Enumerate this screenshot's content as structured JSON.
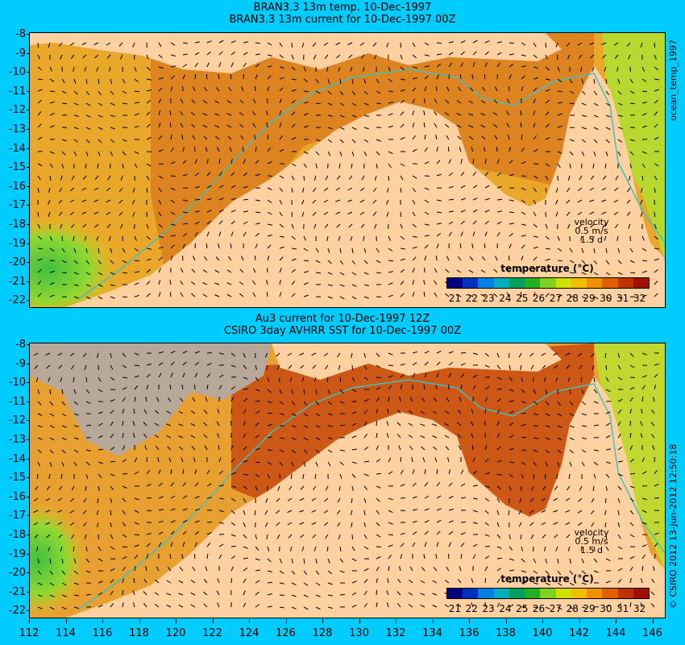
{
  "top": {
    "title_line1": "BRAN3.3 13m temp. 10-Dec-1997",
    "title_line2": "BRAN3.3 13m current for 10-Dec-1997 00Z",
    "legend_title": "temperature (°C)",
    "velocity": [
      "velocity",
      "0.5 m/s",
      "1.5 d"
    ]
  },
  "bottom": {
    "title_line1": "Au3 current for 10-Dec-1997 12Z",
    "title_line2": "CSIRO 3day AVHRR SST for 10-Dec-1997 00Z",
    "legend_title": "temperature (°C)",
    "velocity": [
      "velocity",
      "0.5 m/s",
      "1.5 d"
    ]
  },
  "side_top": "ocean_temp_1997",
  "side_bottom": "© CSIRO 2012  13-Jun-2012 12:50:18",
  "y_ticks": [
    "-8",
    "-9",
    "-10",
    "-11",
    "-12",
    "-13",
    "-14",
    "-15",
    "-16",
    "-17",
    "-18",
    "-19",
    "-20",
    "-21",
    "-22"
  ],
  "x_ticks": [
    "112",
    "114",
    "116",
    "118",
    "120",
    "122",
    "124",
    "126",
    "128",
    "130",
    "132",
    "134",
    "136",
    "138",
    "140",
    "142",
    "144",
    "146"
  ],
  "colorbar_labels": [
    "21",
    "22",
    "23",
    "24",
    "25",
    "26",
    "27",
    "28",
    "29",
    "30",
    "31",
    "32"
  ],
  "colors": {
    "background": "#00ccff",
    "land": "#ffd0a0",
    "cloud_mask": "#b8a89a",
    "isobath": "#40c0c0",
    "colorbar": [
      "#000080",
      "#0030c0",
      "#0080e0",
      "#00b0c0",
      "#00a060",
      "#20b020",
      "#80d020",
      "#d0e000",
      "#f0c000",
      "#f09000",
      "#e06000",
      "#c03000",
      "#a01000"
    ]
  }
}
